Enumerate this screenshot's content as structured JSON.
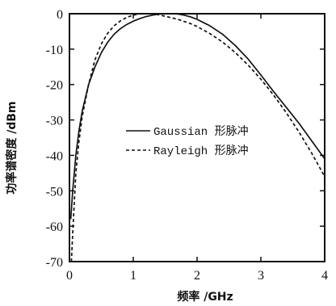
{
  "chart_data": {
    "type": "line",
    "title": "",
    "xlabel": "频率 /GHz",
    "ylabel": "功率谱密度 /dBm",
    "xlim": [
      0,
      4
    ],
    "ylim": [
      -70,
      0
    ],
    "x_ticks": [
      0,
      1,
      2,
      3,
      4
    ],
    "y_ticks": [
      0,
      -10,
      -20,
      -30,
      -40,
      -50,
      -60,
      -70
    ],
    "grid": false,
    "legend_position": "center-right",
    "series": [
      {
        "name": "Gaussian 形脉冲",
        "style": "solid",
        "color": "#111111",
        "points": [
          [
            0.02,
            -58
          ],
          [
            0.05,
            -50
          ],
          [
            0.1,
            -40
          ],
          [
            0.15,
            -33
          ],
          [
            0.2,
            -27.5
          ],
          [
            0.3,
            -20
          ],
          [
            0.4,
            -15
          ],
          [
            0.5,
            -11
          ],
          [
            0.6,
            -8
          ],
          [
            0.7,
            -5.8
          ],
          [
            0.8,
            -4.2
          ],
          [
            0.9,
            -3
          ],
          [
            1.0,
            -2.1
          ],
          [
            1.1,
            -1.4
          ],
          [
            1.2,
            -0.8
          ],
          [
            1.3,
            -0.4
          ],
          [
            1.4,
            -0.1
          ],
          [
            1.5,
            0
          ],
          [
            1.6,
            0
          ],
          [
            1.7,
            -0.1
          ],
          [
            1.8,
            -0.4
          ],
          [
            1.9,
            -0.9
          ],
          [
            2.0,
            -1.6
          ],
          [
            2.2,
            -3.4
          ],
          [
            2.4,
            -5.8
          ],
          [
            2.6,
            -9
          ],
          [
            2.8,
            -12.8
          ],
          [
            3.0,
            -17.3
          ],
          [
            3.2,
            -22
          ],
          [
            3.4,
            -26.5
          ],
          [
            3.6,
            -31
          ],
          [
            3.8,
            -36
          ],
          [
            4.0,
            -41
          ]
        ]
      },
      {
        "name": "Rayleigh 形脉冲",
        "style": "dashed",
        "color": "#111111",
        "points": [
          [
            0.03,
            -70
          ],
          [
            0.05,
            -62
          ],
          [
            0.1,
            -45
          ],
          [
            0.15,
            -36
          ],
          [
            0.2,
            -29
          ],
          [
            0.3,
            -20
          ],
          [
            0.4,
            -13
          ],
          [
            0.5,
            -8.5
          ],
          [
            0.6,
            -5.5
          ],
          [
            0.7,
            -3.4
          ],
          [
            0.8,
            -2
          ],
          [
            0.9,
            -1
          ],
          [
            1.0,
            -0.4
          ],
          [
            1.1,
            0
          ],
          [
            1.2,
            0
          ],
          [
            1.3,
            0
          ],
          [
            1.4,
            -0.3
          ],
          [
            1.5,
            -0.7
          ],
          [
            1.7,
            -1.6
          ],
          [
            1.9,
            -2.8
          ],
          [
            2.0,
            -3.6
          ],
          [
            2.2,
            -5.6
          ],
          [
            2.4,
            -8
          ],
          [
            2.6,
            -11
          ],
          [
            2.8,
            -14.5
          ],
          [
            3.0,
            -18.5
          ],
          [
            3.2,
            -23
          ],
          [
            3.4,
            -28
          ],
          [
            3.6,
            -33.5
          ],
          [
            3.8,
            -39.5
          ],
          [
            4.0,
            -46
          ]
        ]
      }
    ]
  }
}
